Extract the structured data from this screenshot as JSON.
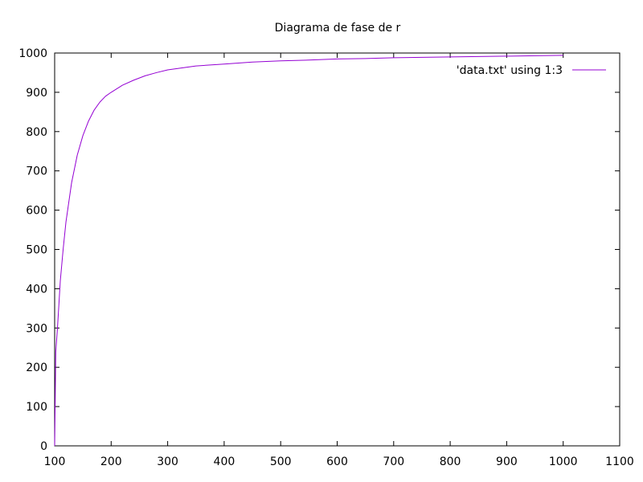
{
  "chart_data": {
    "type": "line",
    "title": "Diagrama de fase de r",
    "xlabel": "",
    "ylabel": "",
    "xlim": [
      100,
      1100
    ],
    "ylim": [
      0,
      1000
    ],
    "xticks": [
      100,
      200,
      300,
      400,
      500,
      600,
      700,
      800,
      900,
      1000,
      1100
    ],
    "yticks": [
      0,
      100,
      200,
      300,
      400,
      500,
      600,
      700,
      800,
      900,
      1000
    ],
    "grid": false,
    "legend_position": "top-right",
    "series": [
      {
        "name": "'data.txt' using 1:3",
        "color": "#9400d3",
        "x": [
          100,
          102,
          105,
          110,
          115,
          120,
          130,
          140,
          150,
          160,
          170,
          180,
          190,
          200,
          220,
          240,
          260,
          280,
          300,
          350,
          400,
          450,
          500,
          550,
          600,
          650,
          700,
          750,
          800,
          850,
          900,
          950,
          1000
        ],
        "y": [
          0,
          240,
          300,
          420,
          500,
          570,
          670,
          740,
          790,
          827,
          855,
          875,
          890,
          900,
          918,
          931,
          942,
          950,
          957,
          967,
          972,
          977,
          980,
          982,
          985,
          986,
          988,
          989,
          990,
          991,
          992,
          993,
          994
        ]
      }
    ]
  }
}
